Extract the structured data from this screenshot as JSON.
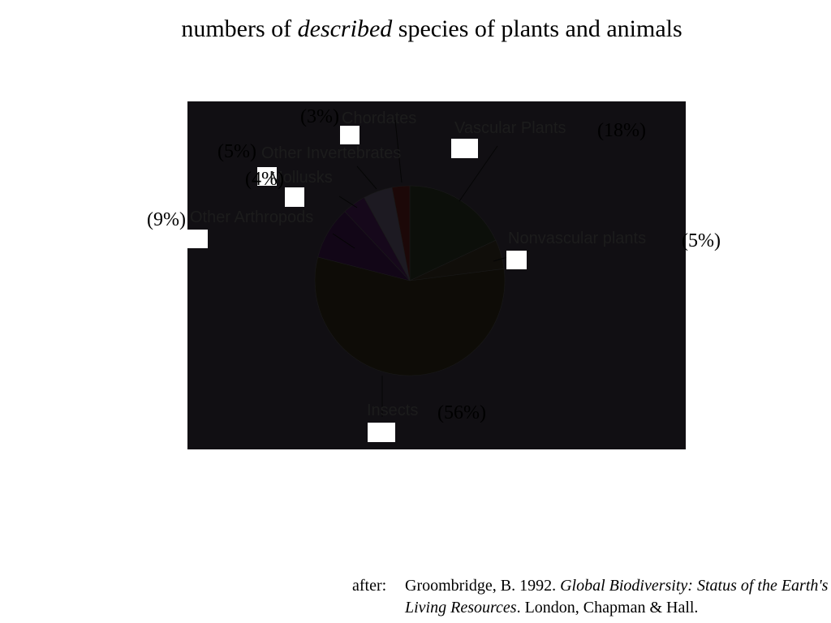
{
  "title": {
    "prefix": "numbers of ",
    "emphasis": "described",
    "suffix": " species of plants and animals"
  },
  "chart_data": {
    "type": "pie",
    "slices": [
      {
        "label": "Vascular Plants",
        "percent_text": "(18%)",
        "value": 18,
        "color": "#0c0f0a"
      },
      {
        "label": "Nonvascular plants",
        "percent_text": "(5%)",
        "value": 5,
        "color": "#100e0a"
      },
      {
        "label": "Insects",
        "percent_text": "(56%)",
        "value": 56,
        "color": "#0e0c07"
      },
      {
        "label": "Other Arthropods",
        "percent_text": "(9%)",
        "value": 9,
        "color": "#120617"
      },
      {
        "label": "Mollusks",
        "percent_text": "(4%)",
        "value": 4,
        "color": "#16081b"
      },
      {
        "label": "Other Invertebrates",
        "percent_text": "(5%)",
        "value": 5,
        "color": "#1d1a22"
      },
      {
        "label": "Chordates",
        "percent_text": "(3%)",
        "value": 3,
        "color": "#1c0808"
      }
    ],
    "colors": {
      "panel": "#110f13",
      "leader": "#050505",
      "label": "#1c1c1c"
    }
  },
  "citation": {
    "prefix": "after:",
    "author_year": "Groombridge, B. 1992. ",
    "work": "Global Biodiversity: Status of the Earth's Living Resources",
    "publisher": ". London, Chapman & Hall."
  }
}
